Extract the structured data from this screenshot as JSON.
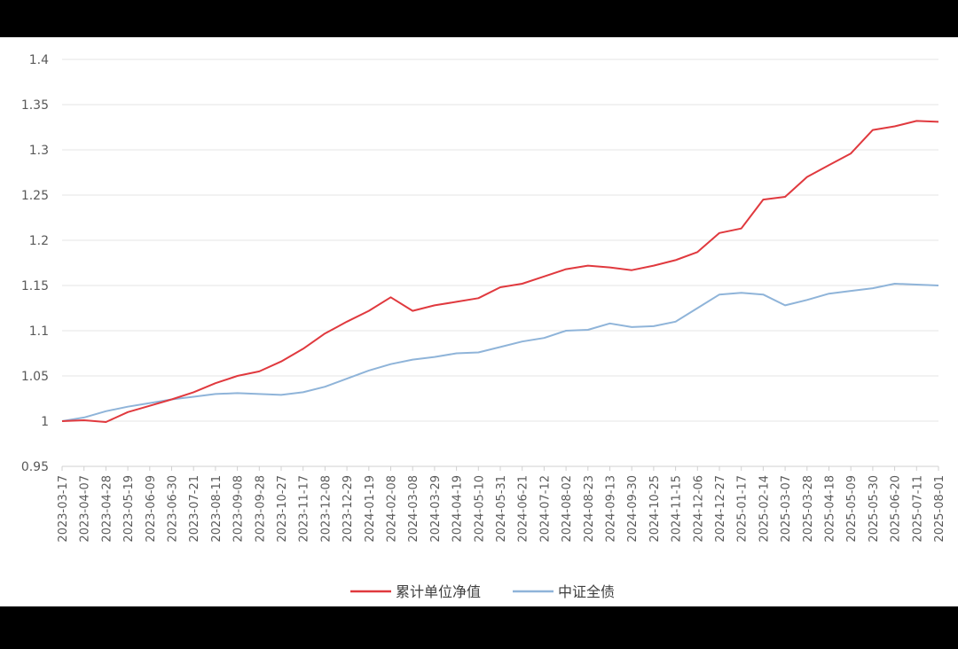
{
  "chart_data": {
    "type": "line",
    "title": "",
    "xlabel": "",
    "ylabel": "",
    "ylim": [
      0.95,
      1.4
    ],
    "yticks": [
      "0.95",
      "1",
      "1.05",
      "1.1",
      "1.15",
      "1.2",
      "1.25",
      "1.3",
      "1.35",
      "1.4"
    ],
    "grid": "horizontal",
    "legend_position": "bottom",
    "categories": [
      "2023-03-17",
      "2023-04-07",
      "2023-04-28",
      "2023-05-19",
      "2023-06-09",
      "2023-06-30",
      "2023-07-21",
      "2023-08-11",
      "2023-09-08",
      "2023-09-28",
      "2023-10-27",
      "2023-11-17",
      "2023-12-08",
      "2023-12-29",
      "2024-01-19",
      "2024-02-08",
      "2024-03-08",
      "2024-03-29",
      "2024-04-19",
      "2024-05-10",
      "2024-05-31",
      "2024-06-21",
      "2024-07-12",
      "2024-08-02",
      "2024-08-23",
      "2024-09-13",
      "2024-09-30",
      "2024-10-25",
      "2024-11-15",
      "2024-12-06",
      "2024-12-27",
      "2025-01-17",
      "2025-02-14",
      "2025-03-07",
      "2025-03-28",
      "2025-04-18",
      "2025-05-09",
      "2025-05-30",
      "2025-06-20",
      "2025-07-11",
      "2025-08-01"
    ],
    "series": [
      {
        "name": "累计单位净值",
        "color": "#e0393e",
        "values": [
          1.0,
          1.001,
          0.999,
          1.01,
          1.017,
          1.024,
          1.032,
          1.042,
          1.05,
          1.055,
          1.066,
          1.08,
          1.097,
          1.11,
          1.122,
          1.137,
          1.122,
          1.128,
          1.132,
          1.136,
          1.148,
          1.152,
          1.16,
          1.168,
          1.172,
          1.17,
          1.167,
          1.172,
          1.178,
          1.187,
          1.208,
          1.213,
          1.245,
          1.248,
          1.27,
          1.283,
          1.296,
          1.322,
          1.326,
          1.332,
          1.331
        ]
      },
      {
        "name": "中证全债",
        "color": "#8fb4d9",
        "values": [
          1.0,
          1.004,
          1.011,
          1.016,
          1.02,
          1.024,
          1.027,
          1.03,
          1.031,
          1.03,
          1.029,
          1.032,
          1.038,
          1.047,
          1.056,
          1.063,
          1.068,
          1.071,
          1.075,
          1.076,
          1.082,
          1.088,
          1.092,
          1.1,
          1.101,
          1.108,
          1.104,
          1.105,
          1.11,
          1.125,
          1.14,
          1.142,
          1.14,
          1.128,
          1.134,
          1.141,
          1.144,
          1.147,
          1.152,
          1.151,
          1.15
        ]
      }
    ]
  }
}
